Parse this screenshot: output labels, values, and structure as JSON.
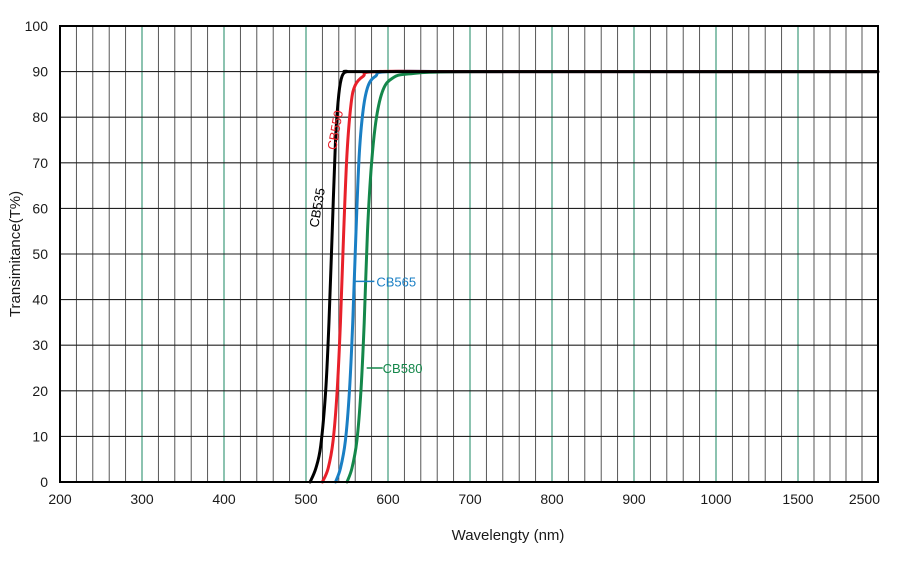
{
  "chart_data": {
    "type": "line",
    "title": "",
    "xlabel": "Wavelengty (nm)",
    "ylabel": "Transimitance(T%)",
    "x_scale": "piecewise (200–700 nm at one spacing, 700–1000 nm compressed, then 1500 and 2500)",
    "x_ticks": [
      200,
      300,
      400,
      500,
      600,
      700,
      800,
      900,
      1000,
      1500,
      2500
    ],
    "y_ticks": [
      0,
      10,
      20,
      30,
      40,
      50,
      60,
      70,
      80,
      90,
      100
    ],
    "ylim": [
      0,
      100
    ],
    "grid": true,
    "series": [
      {
        "name": "CB535",
        "color": "#000000",
        "points": [
          [
            505,
            0
          ],
          [
            512,
            3
          ],
          [
            518,
            8
          ],
          [
            524,
            20
          ],
          [
            528,
            35
          ],
          [
            532,
            55
          ],
          [
            536,
            75
          ],
          [
            540,
            85
          ],
          [
            544,
            89
          ],
          [
            550,
            90
          ],
          [
            560,
            90
          ],
          [
            700,
            90
          ],
          [
            1000,
            90
          ],
          [
            1500,
            90
          ],
          [
            2500,
            90
          ]
        ]
      },
      {
        "name": "CB550",
        "color": "#e8202a",
        "points": [
          [
            520,
            0
          ],
          [
            527,
            3
          ],
          [
            533,
            9
          ],
          [
            538,
            20
          ],
          [
            542,
            35
          ],
          [
            546,
            55
          ],
          [
            550,
            72
          ],
          [
            555,
            83
          ],
          [
            560,
            87
          ],
          [
            570,
            89
          ],
          [
            585,
            90
          ],
          [
            700,
            90
          ],
          [
            1000,
            90
          ],
          [
            1500,
            90
          ],
          [
            2500,
            90
          ]
        ]
      },
      {
        "name": "CB565",
        "color": "#1a7fc4",
        "points": [
          [
            536,
            0
          ],
          [
            542,
            3
          ],
          [
            548,
            9
          ],
          [
            553,
            20
          ],
          [
            557,
            35
          ],
          [
            561,
            55
          ],
          [
            565,
            72
          ],
          [
            570,
            82
          ],
          [
            576,
            87
          ],
          [
            585,
            89
          ],
          [
            600,
            90
          ],
          [
            700,
            90
          ],
          [
            1000,
            90
          ],
          [
            1500,
            90
          ],
          [
            2500,
            90
          ]
        ]
      },
      {
        "name": "CB580",
        "color": "#14874a",
        "points": [
          [
            550,
            0
          ],
          [
            556,
            3
          ],
          [
            562,
            9
          ],
          [
            567,
            20
          ],
          [
            571,
            35
          ],
          [
            575,
            55
          ],
          [
            580,
            70
          ],
          [
            586,
            80
          ],
          [
            594,
            86
          ],
          [
            605,
            88.5
          ],
          [
            625,
            89.5
          ],
          [
            700,
            90
          ],
          [
            1000,
            90
          ],
          [
            1500,
            90
          ],
          [
            2500,
            90
          ]
        ]
      }
    ]
  }
}
